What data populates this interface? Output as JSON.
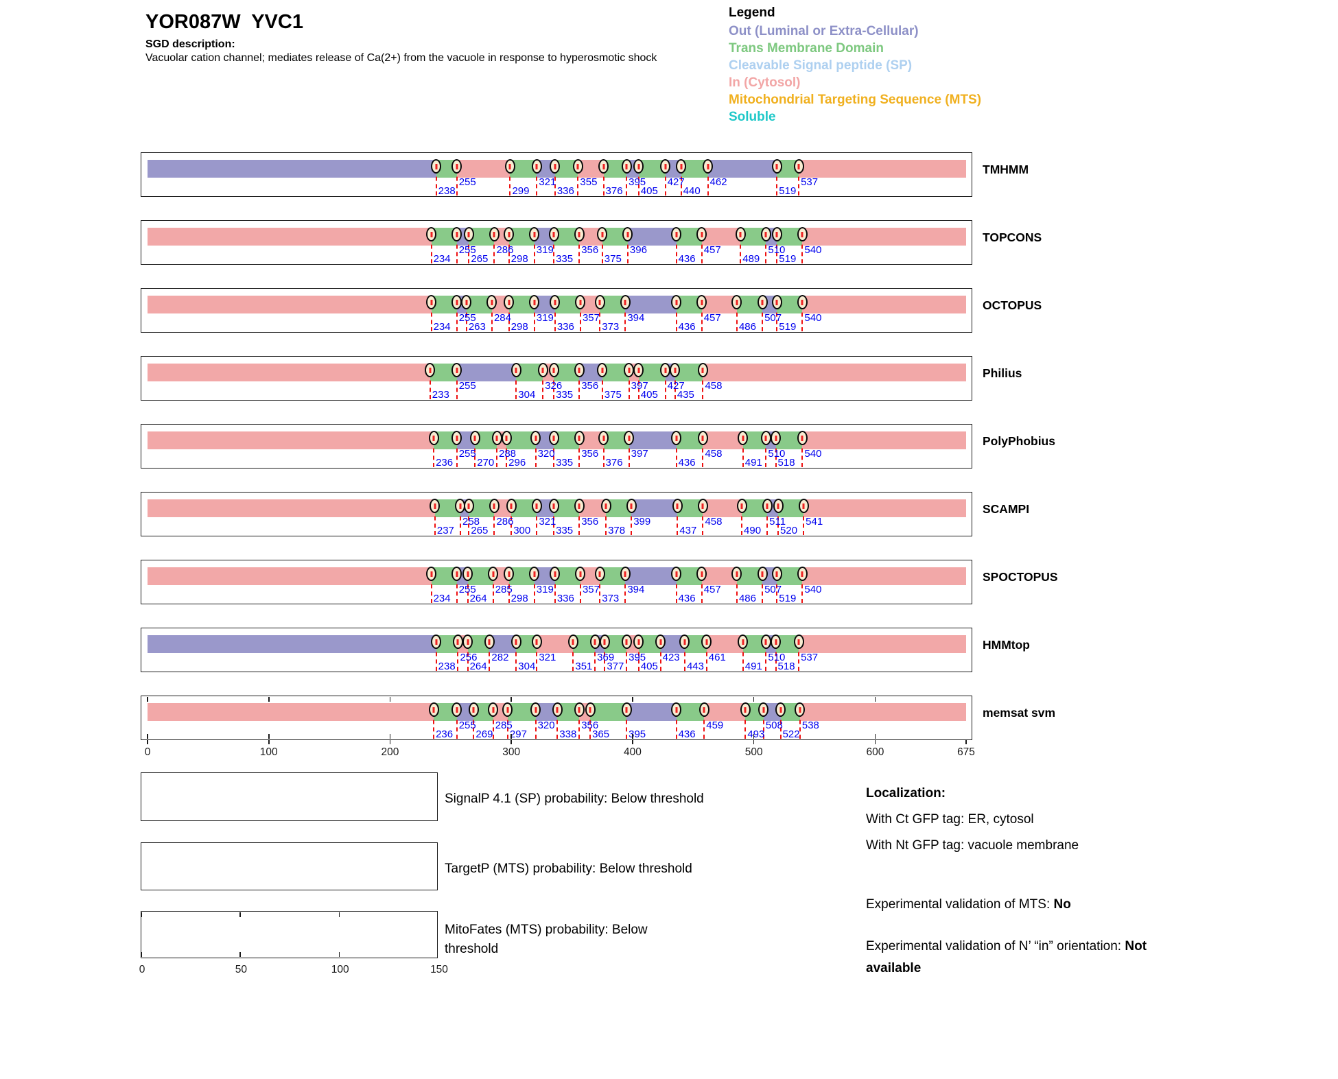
{
  "header": {
    "title": "YOR087W  YVC1",
    "sgd_label": "SGD description:",
    "description": "Vacuolar cation channel; mediates release of Ca(2+) from the vacuole in response to hyperosmotic shock"
  },
  "legend": {
    "title": "Legend",
    "items": [
      {
        "label": "Out (Luminal or Extra-Cellular)",
        "color": "#8d90c7"
      },
      {
        "label": "Trans Membrane Domain",
        "color": "#7dc87f"
      },
      {
        "label": "Cleavable Signal peptide (SP)",
        "color": "#aed0f0"
      },
      {
        "label": "In (Cytosol)",
        "color": "#f2a6a6"
      },
      {
        "label": "Mitochondrial Targeting Sequence (MTS)",
        "color": "#f0b01f"
      },
      {
        "label": "Soluble",
        "color": "#1fc8c8"
      }
    ]
  },
  "colors": {
    "in": "#f2a8a8",
    "tm": "#89ca89",
    "out": "#9a98cb",
    "marker_fill": "#f8ecd2",
    "boundary_line": "#ee1111",
    "boundary_label": "#0000ee"
  },
  "chart_data": {
    "type": "protein-topology-tracks",
    "x_range": [
      0,
      675
    ],
    "x_ticks": [
      0,
      100,
      200,
      300,
      400,
      500,
      600,
      675
    ],
    "segment_legend": {
      "in": "In (Cytosol)",
      "tm": "Trans Membrane Domain",
      "out": "Out (Luminal or Extra-Cellular)"
    },
    "tracks": [
      {
        "name": "TMHMM",
        "boundaries": [
          238,
          255,
          299,
          321,
          336,
          355,
          376,
          395,
          405,
          427,
          440,
          462,
          519,
          537
        ],
        "rows": [
          "L",
          "U",
          "L",
          "U",
          "L",
          "U",
          "L",
          "U",
          "L",
          "U",
          "L",
          "U",
          "L",
          "U"
        ],
        "segment_types": [
          "out",
          "tm",
          "in",
          "tm",
          "out",
          "tm",
          "in",
          "tm",
          "out",
          "tm",
          "out",
          "tm",
          "out",
          "tm",
          "in"
        ],
        "inner_ticks": false
      },
      {
        "name": "TOPCONS",
        "boundaries": [
          234,
          255,
          265,
          286,
          298,
          319,
          335,
          356,
          375,
          396,
          436,
          457,
          489,
          510,
          519,
          540
        ],
        "rows": [
          "L",
          "U",
          "L",
          "U",
          "L",
          "U",
          "L",
          "U",
          "L",
          "U",
          "L",
          "U",
          "L",
          "U",
          "L",
          "U"
        ],
        "segment_types": [
          "in",
          "tm",
          "out",
          "tm",
          "in",
          "tm",
          "out",
          "tm",
          "in",
          "tm",
          "out",
          "tm",
          "in",
          "tm",
          "out",
          "tm",
          "in"
        ],
        "inner_ticks": false
      },
      {
        "name": "OCTOPUS",
        "boundaries": [
          234,
          255,
          263,
          284,
          298,
          319,
          336,
          357,
          373,
          394,
          436,
          457,
          486,
          507,
          519,
          540
        ],
        "rows": [
          "L",
          "U",
          "L",
          "U",
          "L",
          "U",
          "L",
          "U",
          "L",
          "U",
          "L",
          "U",
          "L",
          "U",
          "L",
          "U"
        ],
        "segment_types": [
          "in",
          "tm",
          "out",
          "tm",
          "in",
          "tm",
          "out",
          "tm",
          "in",
          "tm",
          "out",
          "tm",
          "in",
          "tm",
          "out",
          "tm",
          "in"
        ],
        "inner_ticks": false
      },
      {
        "name": "Philius",
        "boundaries": [
          233,
          255,
          304,
          326,
          335,
          356,
          375,
          397,
          405,
          427,
          435,
          458
        ],
        "rows": [
          "L",
          "U",
          "L",
          "U",
          "L",
          "U",
          "L",
          "U",
          "L",
          "U",
          "L",
          "U"
        ],
        "segment_types": [
          "in",
          "tm",
          "out",
          "tm",
          "in",
          "tm",
          "out",
          "tm",
          "in",
          "tm",
          "out",
          "tm",
          "in"
        ],
        "inner_ticks": false
      },
      {
        "name": "PolyPhobius",
        "boundaries": [
          236,
          255,
          270,
          288,
          296,
          320,
          335,
          356,
          376,
          397,
          436,
          458,
          491,
          510,
          518,
          540
        ],
        "rows": [
          "L",
          "U",
          "L",
          "U",
          "L",
          "U",
          "L",
          "U",
          "L",
          "U",
          "L",
          "U",
          "L",
          "U",
          "L",
          "U"
        ],
        "segment_types": [
          "in",
          "tm",
          "out",
          "tm",
          "in",
          "tm",
          "out",
          "tm",
          "in",
          "tm",
          "out",
          "tm",
          "in",
          "tm",
          "out",
          "tm",
          "in"
        ],
        "inner_ticks": false
      },
      {
        "name": "SCAMPI",
        "boundaries": [
          237,
          258,
          265,
          286,
          300,
          321,
          335,
          356,
          378,
          399,
          437,
          458,
          490,
          511,
          520,
          541
        ],
        "rows": [
          "L",
          "U",
          "L",
          "U",
          "L",
          "U",
          "L",
          "U",
          "L",
          "U",
          "L",
          "U",
          "L",
          "U",
          "L",
          "U"
        ],
        "segment_types": [
          "in",
          "tm",
          "out",
          "tm",
          "in",
          "tm",
          "out",
          "tm",
          "in",
          "tm",
          "out",
          "tm",
          "in",
          "tm",
          "out",
          "tm",
          "in"
        ],
        "inner_ticks": false
      },
      {
        "name": "SPOCTOPUS",
        "boundaries": [
          234,
          255,
          264,
          285,
          298,
          319,
          336,
          357,
          373,
          394,
          436,
          457,
          486,
          507,
          519,
          540
        ],
        "rows": [
          "L",
          "U",
          "L",
          "U",
          "L",
          "U",
          "L",
          "U",
          "L",
          "U",
          "L",
          "U",
          "L",
          "U",
          "L",
          "U"
        ],
        "segment_types": [
          "in",
          "tm",
          "out",
          "tm",
          "in",
          "tm",
          "out",
          "tm",
          "in",
          "tm",
          "out",
          "tm",
          "in",
          "tm",
          "out",
          "tm",
          "in"
        ],
        "inner_ticks": false
      },
      {
        "name": "HMMtop",
        "boundaries": [
          238,
          256,
          264,
          282,
          304,
          321,
          351,
          369,
          377,
          395,
          405,
          423,
          443,
          461,
          491,
          510,
          518,
          537
        ],
        "rows": [
          "L",
          "U",
          "L",
          "U",
          "L",
          "U",
          "L",
          "U",
          "L",
          "U",
          "L",
          "U",
          "L",
          "U",
          "L",
          "U",
          "L",
          "U"
        ],
        "segment_types": [
          "out",
          "tm",
          "in",
          "tm",
          "out",
          "tm",
          "in",
          "tm",
          "out",
          "tm",
          "in",
          "tm",
          "out",
          "tm",
          "in",
          "tm",
          "out",
          "tm",
          "in"
        ],
        "inner_ticks": false
      },
      {
        "name": "memsat svm",
        "boundaries": [
          236,
          255,
          269,
          285,
          297,
          320,
          338,
          356,
          365,
          395,
          436,
          459,
          493,
          508,
          522,
          538
        ],
        "rows": [
          "L",
          "U",
          "L",
          "U",
          "L",
          "U",
          "L",
          "U",
          "L",
          "L",
          "L",
          "U",
          "L",
          "U",
          "L",
          "U"
        ],
        "segment_types": [
          "in",
          "tm",
          "out",
          "tm",
          "in",
          "tm",
          "out",
          "tm",
          "in",
          "tm",
          "out",
          "tm",
          "in",
          "tm",
          "out",
          "tm",
          "in"
        ],
        "inner_ticks": true
      }
    ]
  },
  "probability_panels": [
    {
      "label": "SignalP 4.1 (SP) probability: Below threshold"
    },
    {
      "label": "TargetP (MTS) probability: Below threshold"
    },
    {
      "label": "MitoFates (MTS) probability: Below threshold",
      "axis": {
        "min": 0,
        "max": 150,
        "ticks": [
          0,
          50,
          100,
          150
        ]
      }
    }
  ],
  "info": {
    "localization_title": "Localization:",
    "ct_line": "With Ct GFP tag: ER, cytosol",
    "nt_line": "With Nt GFP tag: vacuole membrane",
    "mts_label": "Experimental validation of MTS: ",
    "mts_value": "No",
    "orientation_label": "Experimental validation of N’ “in” orientation: ",
    "orientation_value": "Not available"
  }
}
